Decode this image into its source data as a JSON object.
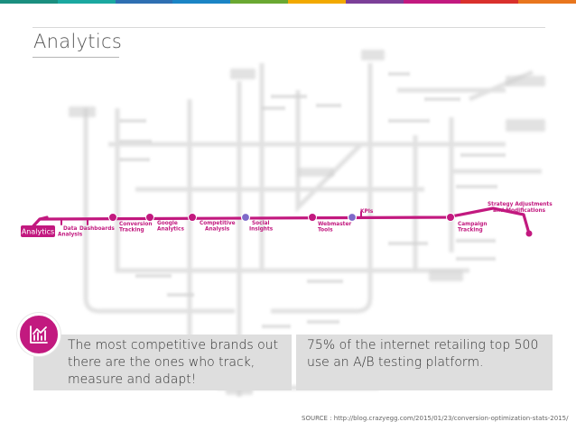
{
  "colors": {
    "accent": "#c2197f",
    "station_blue": "#7e69c9",
    "station_dark": "#a3145f",
    "top_bar": [
      "#1a8f7f",
      "#1aa8a0",
      "#2e6fb2",
      "#1a84c5",
      "#6aa832",
      "#f2a900",
      "#7b3f98",
      "#c2197f",
      "#d9302c",
      "#e8761d"
    ]
  },
  "header": {
    "title": "Analytics"
  },
  "subway": {
    "start_label": "Analytics",
    "stations": [
      {
        "label": "Data\nAnalysis"
      },
      {
        "label": "Dashboards"
      },
      {
        "label": "Conversion\nTracking"
      },
      {
        "label": "Google\nAnalytics"
      },
      {
        "label": "Competitive\nAnalysis"
      },
      {
        "label": "Social\nInsights"
      },
      {
        "label": "Webmaster\nTools"
      },
      {
        "label": "KPIs"
      },
      {
        "label": "Campaign\nTracking"
      },
      {
        "label": "Strategy Adjustments\nand Modifications"
      }
    ]
  },
  "cards": {
    "left_text": "The most competitive brands out there are the ones who track, measure and adapt!",
    "right_text": "75% of the internet retailing top 500 use an A/B testing platform.",
    "icon": "bar-chart-trend-icon"
  },
  "footer": {
    "source": "SOURCE : http://blog.crazyegg.com/2015/01/23/conversion-optimization-stats-2015/"
  }
}
